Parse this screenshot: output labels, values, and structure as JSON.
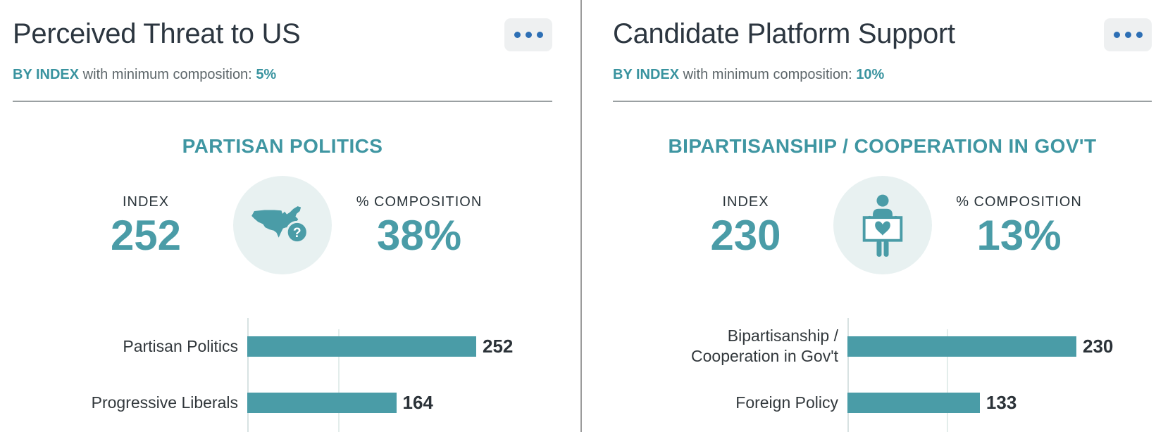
{
  "colors": {
    "teal": "#4a9ca7",
    "teal_heading": "#3f96a2",
    "menu_dots_blue": "#2d6fb5",
    "icon_circle_bg": "#e8f1f1",
    "divider_gray": "#9aa0a2"
  },
  "cards": [
    {
      "title": "Perceived Threat to US",
      "menu_icon": "ellipsis-icon",
      "filter": {
        "by": "BY INDEX",
        "text": "with minimum composition:",
        "value": "5%"
      },
      "section_heading": "PARTISAN POLITICS",
      "stat": {
        "index_label": "INDEX",
        "index_value": "252",
        "icon": "us-map-question-icon",
        "composition_label": "% COMPOSITION",
        "composition_value": "38%"
      },
      "chart_data": {
        "type": "bar",
        "orientation": "horizontal",
        "categories": [
          "Partisan Politics",
          "Progressive Liberals"
        ],
        "values": [
          252,
          164
        ],
        "value_labels": [
          "252",
          "164"
        ],
        "xlim": [
          0,
          260
        ],
        "gridlines": [
          100
        ],
        "bar_color": "#4a9ca7",
        "legend": false,
        "grid": true
      }
    },
    {
      "title": "Candidate Platform Support",
      "menu_icon": "ellipsis-icon",
      "filter": {
        "by": "BY INDEX",
        "text": "with minimum composition:",
        "value": "10%"
      },
      "section_heading": "BIPARTISANSHIP / COOPERATION IN GOV'T",
      "stat": {
        "index_label": "INDEX",
        "index_value": "230",
        "icon": "person-holding-heart-sign-icon",
        "composition_label": "% COMPOSITION",
        "composition_value": "13%"
      },
      "chart_data": {
        "type": "bar",
        "orientation": "horizontal",
        "categories": [
          "Bipartisanship /\nCooperation in Gov't",
          "Foreign Policy"
        ],
        "values": [
          230,
          133
        ],
        "value_labels": [
          "230",
          "133"
        ],
        "xlim": [
          0,
          240
        ],
        "gridlines": [
          100
        ],
        "bar_color": "#4a9ca7",
        "legend": false,
        "grid": true
      }
    }
  ]
}
